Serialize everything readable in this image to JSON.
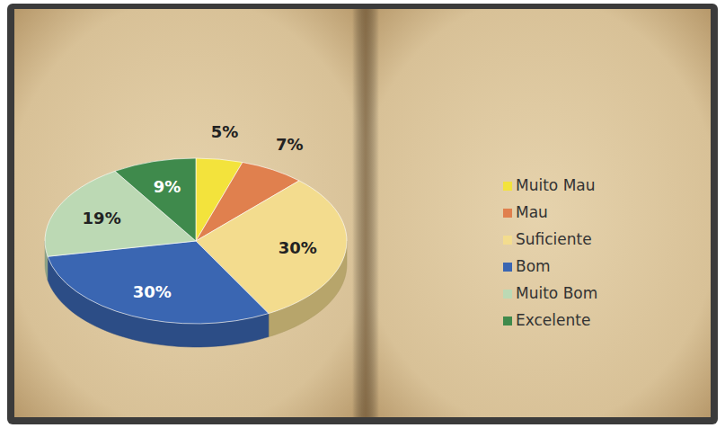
{
  "chart_data": {
    "type": "pie",
    "categories": [
      "Muito Mau",
      "Mau",
      "Suficiente",
      "Bom",
      "Muito Bom",
      "Excelente"
    ],
    "values": [
      5,
      7,
      30,
      30,
      19,
      9
    ],
    "value_labels": [
      "5%",
      "7%",
      "30%",
      "30%",
      "19%",
      "9%"
    ],
    "colors": [
      "#f3e33c",
      "#e0804e",
      "#f3dc8e",
      "#3a66b2",
      "#bcd9b4",
      "#3f8a4c"
    ],
    "data_labels": true,
    "legend": "right"
  }
}
